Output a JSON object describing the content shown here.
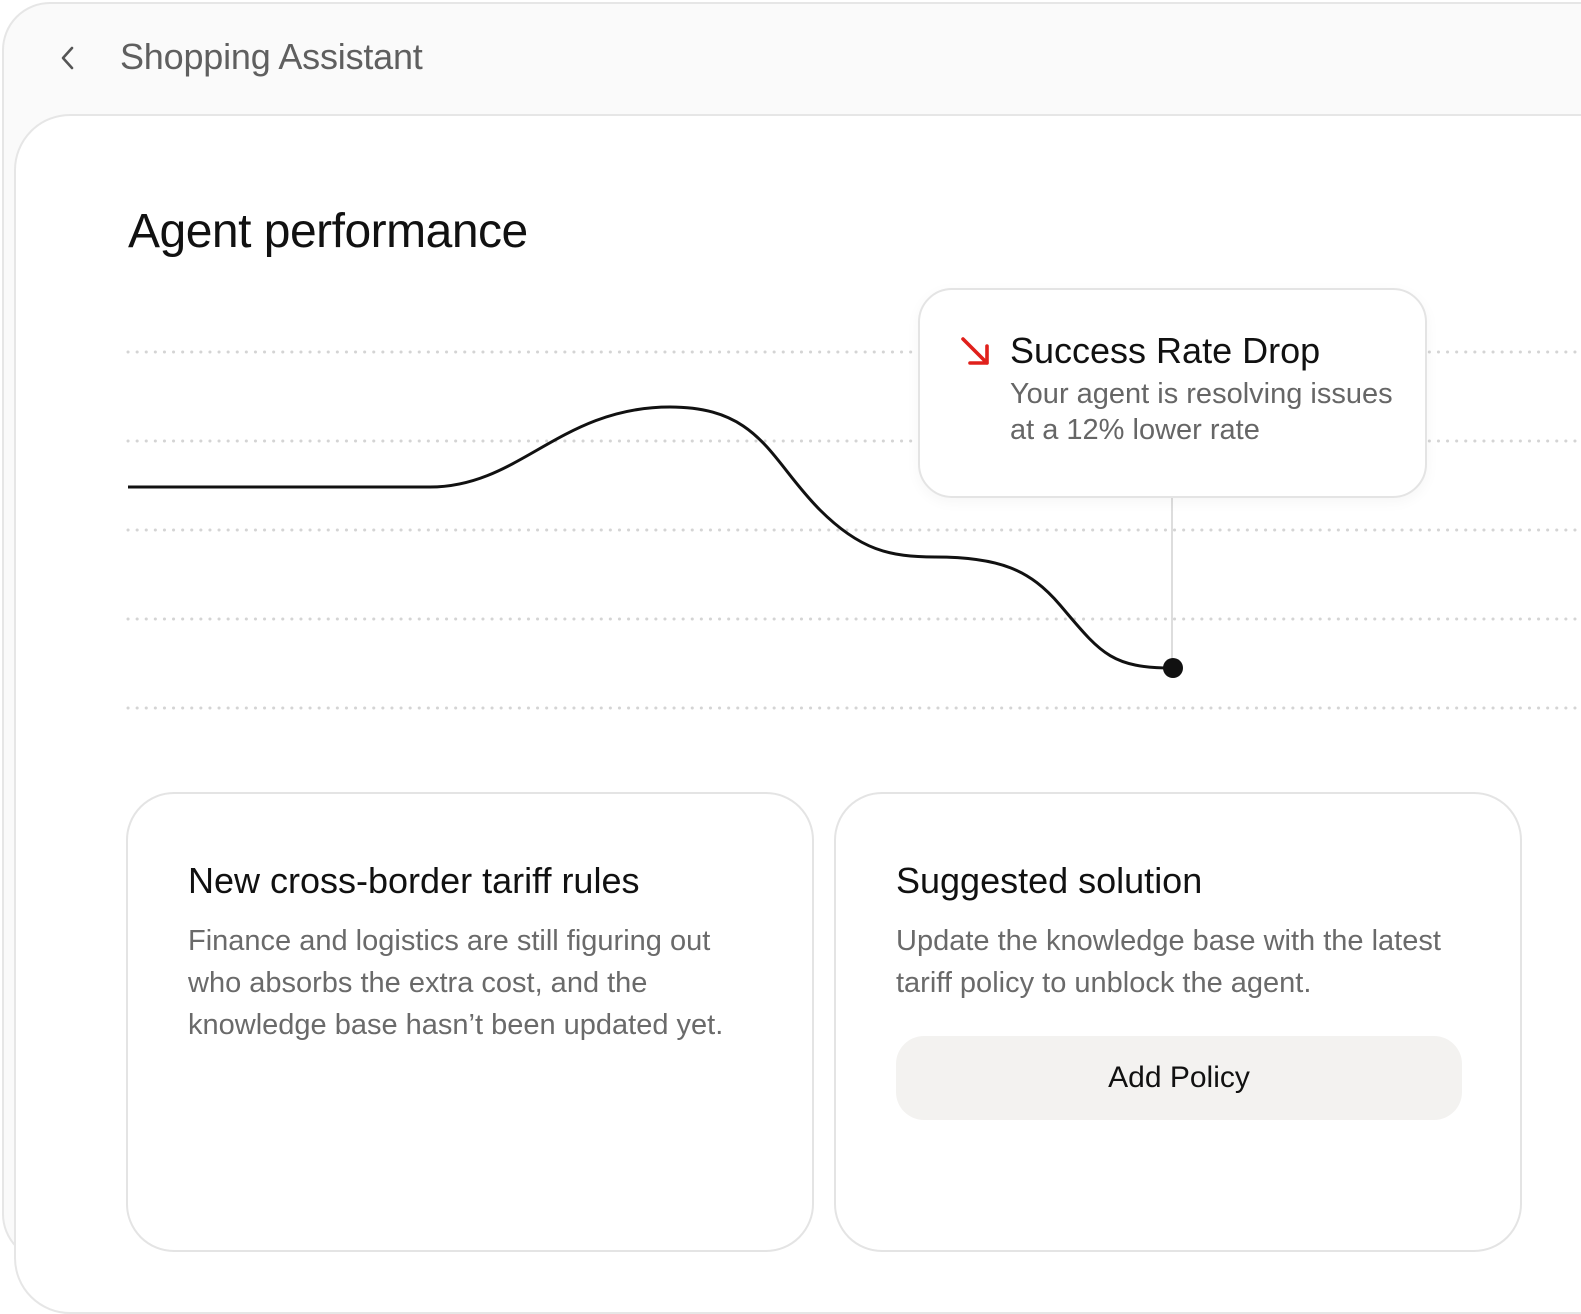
{
  "header": {
    "back_icon": "chevron-left-icon",
    "title": "Shopping Assistant"
  },
  "performance": {
    "title": "Agent performance"
  },
  "alert": {
    "icon": "arrow-down-right-icon",
    "icon_color": "#e0201b",
    "title": "Success Rate Drop",
    "body": "Your agent is resolving issues at a 12% lower rate"
  },
  "cards": {
    "problem": {
      "title": "New cross-border tariff rules",
      "body": "Finance and logistics are still figuring out who absorbs the extra cost, and the knowledge base hasn’t been updated yet."
    },
    "solution": {
      "title": "Suggested solution",
      "body": "Update the knowledge base with the latest tariff policy to unblock the agent.",
      "button_label": "Add Policy"
    }
  }
}
